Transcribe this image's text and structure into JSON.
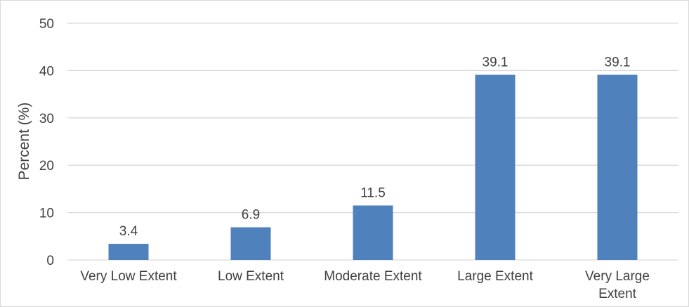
{
  "chart_data": {
    "type": "bar",
    "categories": [
      [
        "Very Low Extent"
      ],
      [
        "Low Extent"
      ],
      [
        "Moderate Extent"
      ],
      [
        "Large Extent"
      ],
      [
        "Very Large",
        "Extent"
      ]
    ],
    "values": [
      3.4,
      6.9,
      11.5,
      39.1,
      39.1
    ],
    "data_labels": [
      "3.4",
      "6.9",
      "11.5",
      "39.1",
      "39.1"
    ],
    "ylabel": "Percent (%)",
    "ylim": [
      0,
      50
    ],
    "yticks": [
      0,
      10,
      20,
      30,
      40,
      50
    ],
    "ytick_labels": [
      "0",
      "10",
      "20",
      "30",
      "40",
      "50"
    ],
    "grid": true,
    "legend": "none",
    "colors": {
      "bar": "#4f81bd",
      "grid": "#d9d9d9",
      "text": "#404040"
    }
  }
}
